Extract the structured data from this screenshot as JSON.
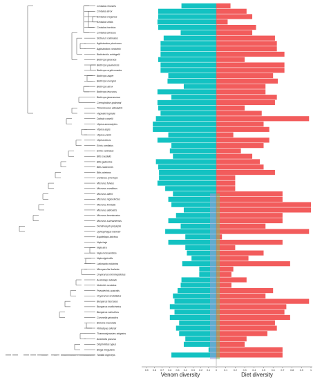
{
  "chart_data": {
    "type": "bar",
    "orientation": "horizontal",
    "layout": "back-to-back bars aligned with a phylogenetic tree",
    "xlabel_left": "Venom diversity",
    "xlabel_right": "Diet diversity",
    "left_ticks": [
      "0.9",
      "0.8",
      "0.7",
      "0.6",
      "0.5",
      "0.4",
      "0.3",
      "0.2",
      "0.1",
      "0"
    ],
    "right_ticks": [
      "0",
      "0.1",
      "0.2",
      "0.3",
      "0.4",
      "0.5",
      "0.6",
      "0.7",
      "0.8",
      "0.9",
      "1"
    ],
    "xlim_left": [
      0,
      0.95
    ],
    "xlim_right": [
      0,
      1.0
    ],
    "colors": {
      "venom": "#13c2c2",
      "diet": "#f25c5c",
      "overlap": "#9e9adb",
      "tree": "#444444"
    },
    "species": [
      "Crotalus cerastes",
      "Crotalus atrox",
      "Crotalus oreganus",
      "Crotalus viridis",
      "Crotalus horridus",
      "Crotalus durissus",
      "Sistrurus catenatus",
      "Agkistrodon piscivorus",
      "Agkistrodon contortrix",
      "Bothriechis schlegelii",
      "Bothrops jararaca",
      "Bothrops pauloensis",
      "Bothrops erythromelas",
      "Bothrops asper",
      "Bothrops moojeni",
      "Bothrops atrox",
      "Bothrops leucurus",
      "Bothrops jararacussu",
      "Cerrophidion godmani",
      "Trimeresurus albolabris",
      "Hypnale hypnale",
      "Daboia russelii",
      "Vipera ammodytes",
      "Vipera aspis",
      "Vipera ursinii",
      "Vipera berus",
      "Echis ocellatus",
      "Echis carinatus",
      "Bitis caudalis",
      "Bitis gabonica",
      "Bitis nasicornis",
      "Bitis arietans",
      "Cerberus rynchops",
      "Micrurus fulvius",
      "Micrurus corallinus",
      "Micrurus alleni",
      "Micrurus nigrocinctus",
      "Micrurus frontalis",
      "Micrurus altirostris",
      "Micrurus lemniscatus",
      "Micrurus surinamensis",
      "Dendroaspis polylepis",
      "Ophiophagus hannah",
      "Aspidelaps lubricus",
      "Naja haje",
      "Naja atra",
      "Naja mossambica",
      "Naja nigricollis",
      "Laticauda colubrina",
      "Micropechis ikaheka",
      "Oxyuranus microlepidotus",
      "Austrelaps labialis",
      "Notechis scutatus",
      "Pseudechis australis",
      "Oxyuranus scutellatus",
      "Bungarus fasciatus",
      "Bungarus multicinctus",
      "Bungarus caeruleus",
      "Coronella girondica",
      "Boiruna maculata",
      "Philodryas olfersii",
      "Thamnodynastes strigatus",
      "Ahaetulla prasina",
      "Dispholidus typus",
      "Boiga irregularis",
      "Tantilla nigriceps"
    ],
    "venom_diversity": [
      0.45,
      0.75,
      0.75,
      0.76,
      0.75,
      0.46,
      0.68,
      0.72,
      0.72,
      0.72,
      0.75,
      0.72,
      0.72,
      0.62,
      0.63,
      0.42,
      0.76,
      0.58,
      0.76,
      0.75,
      0.72,
      0.78,
      0.82,
      0.82,
      0.62,
      0.76,
      0.58,
      0.6,
      0.56,
      0.78,
      0.75,
      0.74,
      0.74,
      0.76,
      0.66,
      0.56,
      0.62,
      0.58,
      0.42,
      0.52,
      0.62,
      0.46,
      0.66,
      0.4,
      0.62,
      0.4,
      0.38,
      0.32,
      0.44,
      0.22,
      0.22,
      0.45,
      0.46,
      0.5,
      0.56,
      0.54,
      0.6,
      0.54,
      0.6,
      0.48,
      0.52,
      0.48,
      0.4,
      0.42,
      0.1,
      0.58
    ],
    "diet_diversity": [
      0.15,
      0.32,
      0.38,
      0.12,
      0.42,
      0.38,
      0.62,
      0.64,
      0.64,
      0.72,
      0.3,
      0.72,
      0.72,
      0.6,
      0.65,
      0.52,
      0.52,
      0.64,
      0.62,
      0.3,
      0.48,
      0.98,
      0.5,
      0.56,
      0.18,
      0.56,
      0.5,
      0.26,
      0.38,
      0.46,
      0.5,
      0.62,
      0.2,
      0.2,
      0.2,
      0.7,
      0.7,
      1.0,
      1.0,
      0.7,
      0.7,
      0.52,
      0.98,
      0.06,
      0.7,
      0.2,
      0.5,
      0.34,
      0.78,
      0.18,
      0.16,
      0.32,
      0.16,
      0.6,
      0.52,
      0.98,
      0.74,
      0.72,
      0.78,
      0.62,
      0.64,
      0.54,
      0.32,
      0.3,
      0.7,
      0.7
    ]
  }
}
